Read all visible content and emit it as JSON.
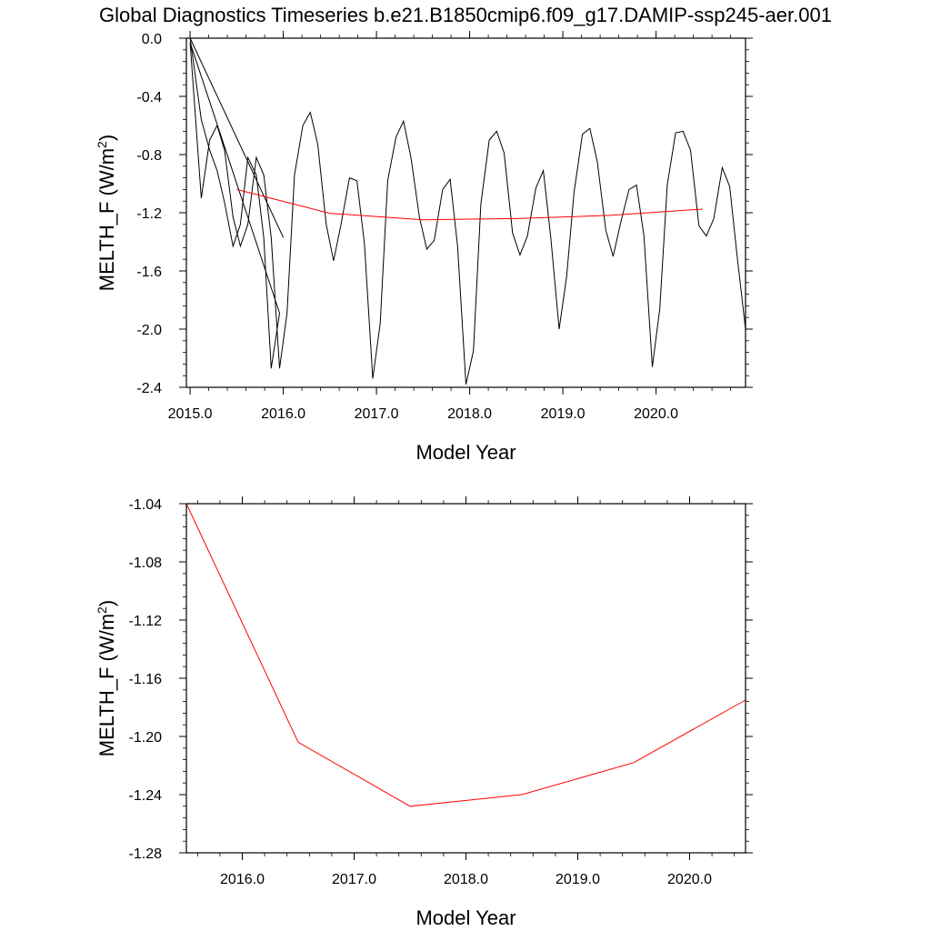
{
  "title": "Global Diagnostics Timeseries b.e21.B1850cmip6.f09_g17.DAMIP-ssp245-aer.001",
  "chart_data": [
    {
      "type": "line",
      "xlabel": "Model Year",
      "ylabel_main": "MELTH_F (W/m",
      "ylabel_sup": "2",
      "ylabel_close": ")",
      "xlim": [
        2014.96,
        2020.96
      ],
      "ylim": [
        -2.4,
        0.0
      ],
      "xticks": [
        2015.0,
        2016.0,
        2017.0,
        2018.0,
        2019.0,
        2020.0
      ],
      "xtick_labels": [
        "2015.0",
        "2016.0",
        "2017.0",
        "2018.0",
        "2019.0",
        "2020.0"
      ],
      "yticks": [
        0.0,
        -0.4,
        -0.8,
        -1.2,
        -1.6,
        -2.0,
        -2.4
      ],
      "ytick_labels": [
        "0.0",
        "-0.4",
        "-0.8",
        "-1.2",
        "-1.6",
        "-2.0",
        "-2.4"
      ],
      "grid": false,
      "series": [
        {
          "color": "#000000",
          "x": [
            2015.0,
            2016.0,
            2015.0,
            2015.12,
            2015.21,
            2015.29,
            2015.37,
            2015.46,
            2015.54,
            2015.62,
            2015.71,
            2015.79,
            2015.87,
            2015.96,
            2015.0,
            2015.12,
            2015.21,
            2015.29,
            2015.37,
            2015.46,
            2015.54,
            2015.62,
            2015.71,
            2015.79,
            2015.87,
            2015.96,
            2016.04,
            2016.12,
            2016.21,
            2016.29,
            2016.37,
            2016.46,
            2016.54,
            2016.62,
            2016.71,
            2016.79,
            2016.87,
            2016.96,
            2017.04,
            2017.12,
            2017.21,
            2017.29,
            2017.37,
            2017.46,
            2017.54,
            2017.62,
            2017.71,
            2017.79,
            2017.87,
            2017.96,
            2018.04,
            2018.12,
            2018.21,
            2018.29,
            2018.37,
            2018.46,
            2018.54,
            2018.62,
            2018.71,
            2018.79,
            2018.87,
            2018.96,
            2019.04,
            2019.12,
            2019.21,
            2019.29,
            2019.37,
            2019.46,
            2019.54,
            2019.62,
            2019.71,
            2019.79,
            2019.87,
            2019.96,
            2020.04,
            2020.12,
            2020.21,
            2020.29,
            2020.37,
            2020.46,
            2020.54,
            2020.62,
            2020.71,
            2020.79,
            2020.87,
            2020.96
          ],
          "y": [
            0.0,
            -1.37,
            0.0,
            -0.56,
            -0.77,
            -0.91,
            -1.13,
            -1.43,
            -1.28,
            -0.82,
            -0.94,
            -1.37,
            -2.27,
            -1.89,
            -0.03,
            -1.1,
            -0.7,
            -0.6,
            -0.77,
            -1.23,
            -1.43,
            -1.28,
            -0.82,
            -0.94,
            -1.37,
            -2.27,
            -1.89,
            -0.94,
            -0.6,
            -0.51,
            -0.73,
            -1.28,
            -1.53,
            -1.28,
            -0.96,
            -0.98,
            -1.41,
            -2.34,
            -1.96,
            -0.98,
            -0.68,
            -0.57,
            -0.82,
            -1.23,
            -1.45,
            -1.39,
            -1.04,
            -0.97,
            -1.43,
            -2.38,
            -2.15,
            -1.14,
            -0.7,
            -0.64,
            -0.79,
            -1.34,
            -1.49,
            -1.36,
            -1.03,
            -0.91,
            -1.37,
            -2.0,
            -1.64,
            -1.06,
            -0.66,
            -0.62,
            -0.85,
            -1.32,
            -1.5,
            -1.27,
            -1.04,
            -1.01,
            -1.36,
            -2.26,
            -1.86,
            -1.01,
            -0.65,
            -0.64,
            -0.77,
            -1.29,
            -1.36,
            -1.24,
            -0.89,
            -1.02,
            -1.5,
            -2.0
          ]
        },
        {
          "color": "#ff0000",
          "x": [
            2015.5,
            2016.5,
            2017.5,
            2018.5,
            2019.5,
            2020.5
          ],
          "y": [
            -1.04,
            -1.204,
            -1.248,
            -1.24,
            -1.218,
            -1.175
          ]
        }
      ]
    },
    {
      "type": "line",
      "xlabel": "Model Year",
      "ylabel_main": "MELTH_F (W/m",
      "ylabel_sup": "2",
      "ylabel_close": ")",
      "xlim": [
        2015.5,
        2020.5
      ],
      "ylim": [
        -1.28,
        -1.04
      ],
      "xticks": [
        2016.0,
        2017.0,
        2018.0,
        2019.0,
        2020.0
      ],
      "xtick_labels": [
        "2016.0",
        "2017.0",
        "2018.0",
        "2019.0",
        "2020.0"
      ],
      "yticks": [
        -1.04,
        -1.08,
        -1.12,
        -1.16,
        -1.2,
        -1.24,
        -1.28
      ],
      "ytick_labels": [
        "-1.04",
        "-1.08",
        "-1.12",
        "-1.16",
        "-1.20",
        "-1.24",
        "-1.28"
      ],
      "grid": false,
      "series": [
        {
          "color": "#ff0000",
          "x": [
            2015.5,
            2016.5,
            2017.5,
            2018.5,
            2019.5,
            2020.5
          ],
          "y": [
            -1.04,
            -1.204,
            -1.248,
            -1.24,
            -1.218,
            -1.175
          ]
        }
      ]
    }
  ]
}
